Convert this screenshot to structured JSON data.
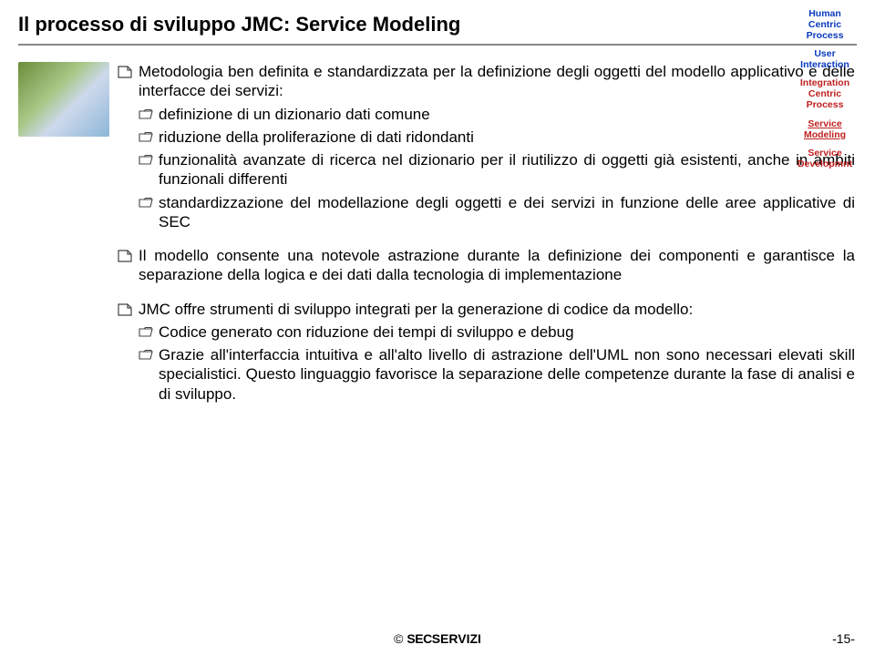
{
  "title": "Il processo di sviluppo JMC: Service Modeling",
  "sideTags": [
    {
      "lines": [
        "Human",
        "Centric",
        "Process"
      ],
      "color": "clr-blue",
      "underline": false
    },
    {
      "lines": [
        "User",
        "Interaction"
      ],
      "color": "clr-blue",
      "underline": false
    },
    {
      "lines": [
        "Integration",
        "Centric",
        "Process"
      ],
      "color": "clr-red",
      "underline": false
    },
    {
      "lines": [
        "Service",
        "Modeling"
      ],
      "color": "clr-red",
      "underline": true
    },
    {
      "lines": [
        "Service",
        "Developmnt"
      ],
      "color": "clr-red",
      "underline": false
    }
  ],
  "bullets": [
    {
      "text": "Metodologia ben definita e standardizzata per la definizione degli oggetti del modello applicativo e delle interfacce dei servizi:",
      "children": [
        "definizione di un dizionario dati comune",
        "riduzione della proliferazione di dati ridondanti",
        "funzionalità avanzate di ricerca nel dizionario per il riutilizzo di oggetti già esistenti, anche in ambiti funzionali differenti",
        "standardizzazione del modellazione degli oggetti e dei servizi in funzione delle aree applicative di SEC"
      ]
    },
    {
      "text": "Il modello consente una notevole astrazione durante la definizione dei componenti e garantisce la separazione della logica e dei dati dalla tecnologia di implementazione",
      "children": []
    },
    {
      "text": "JMC offre strumenti di sviluppo integrati per la generazione di codice da modello:",
      "children": [
        "Codice generato con riduzione dei tempi di sviluppo e debug",
        "Grazie all'interfaccia intuitiva e all'alto livello di astrazione dell'UML non sono necessari elevati skill specialistici. Questo linguaggio favorisce la separazione delle competenze durante la fase di analisi e di sviluppo."
      ]
    }
  ],
  "footer": {
    "copy": "©",
    "brand1": "SEC",
    "brand2": "SERVIZI"
  },
  "pageNumber": "-15-"
}
